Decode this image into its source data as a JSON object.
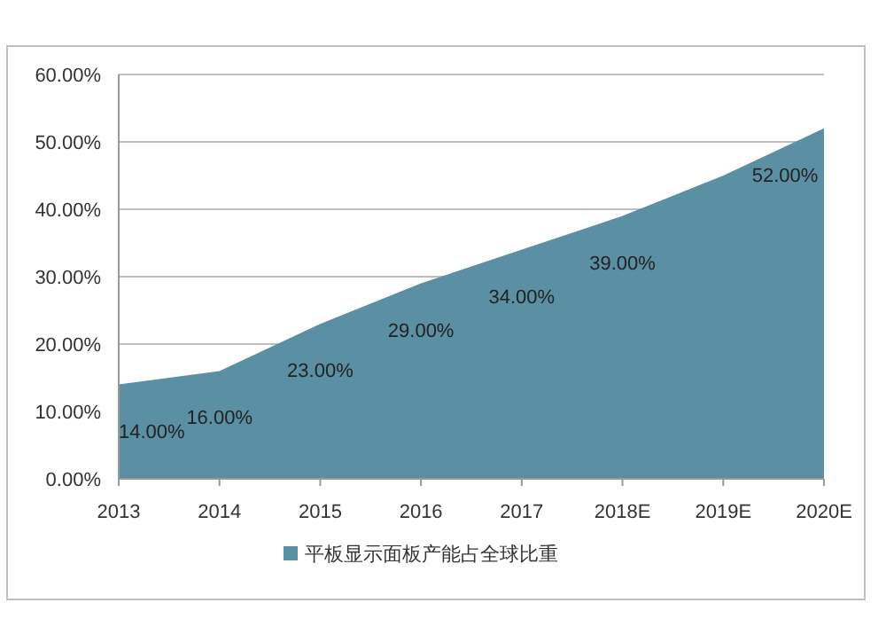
{
  "chart_data": {
    "type": "area",
    "categories": [
      "2013",
      "2014",
      "2015",
      "2016",
      "2017",
      "2018E",
      "2019E",
      "2020E"
    ],
    "series": [
      {
        "name": "平板显示面板产能占全球比重",
        "color": "#5b8fa4",
        "values": [
          14,
          16,
          23,
          29,
          34,
          39,
          45,
          52
        ],
        "value_labels": [
          "14.00%",
          "16.00%",
          "23.00%",
          "29.00%",
          "34.00%",
          "39.00%",
          null,
          "52.00%"
        ]
      }
    ],
    "ylim": [
      0,
      60
    ],
    "yticks": [
      {
        "value": 0,
        "label": "0.00%"
      },
      {
        "value": 10,
        "label": "10.00%"
      },
      {
        "value": 20,
        "label": "20.00%"
      },
      {
        "value": 30,
        "label": "30.00%"
      },
      {
        "value": 40,
        "label": "40.00%"
      },
      {
        "value": 50,
        "label": "50.00%"
      },
      {
        "value": 60,
        "label": "60.00%"
      }
    ],
    "grid": "y",
    "legend": "bottom"
  }
}
